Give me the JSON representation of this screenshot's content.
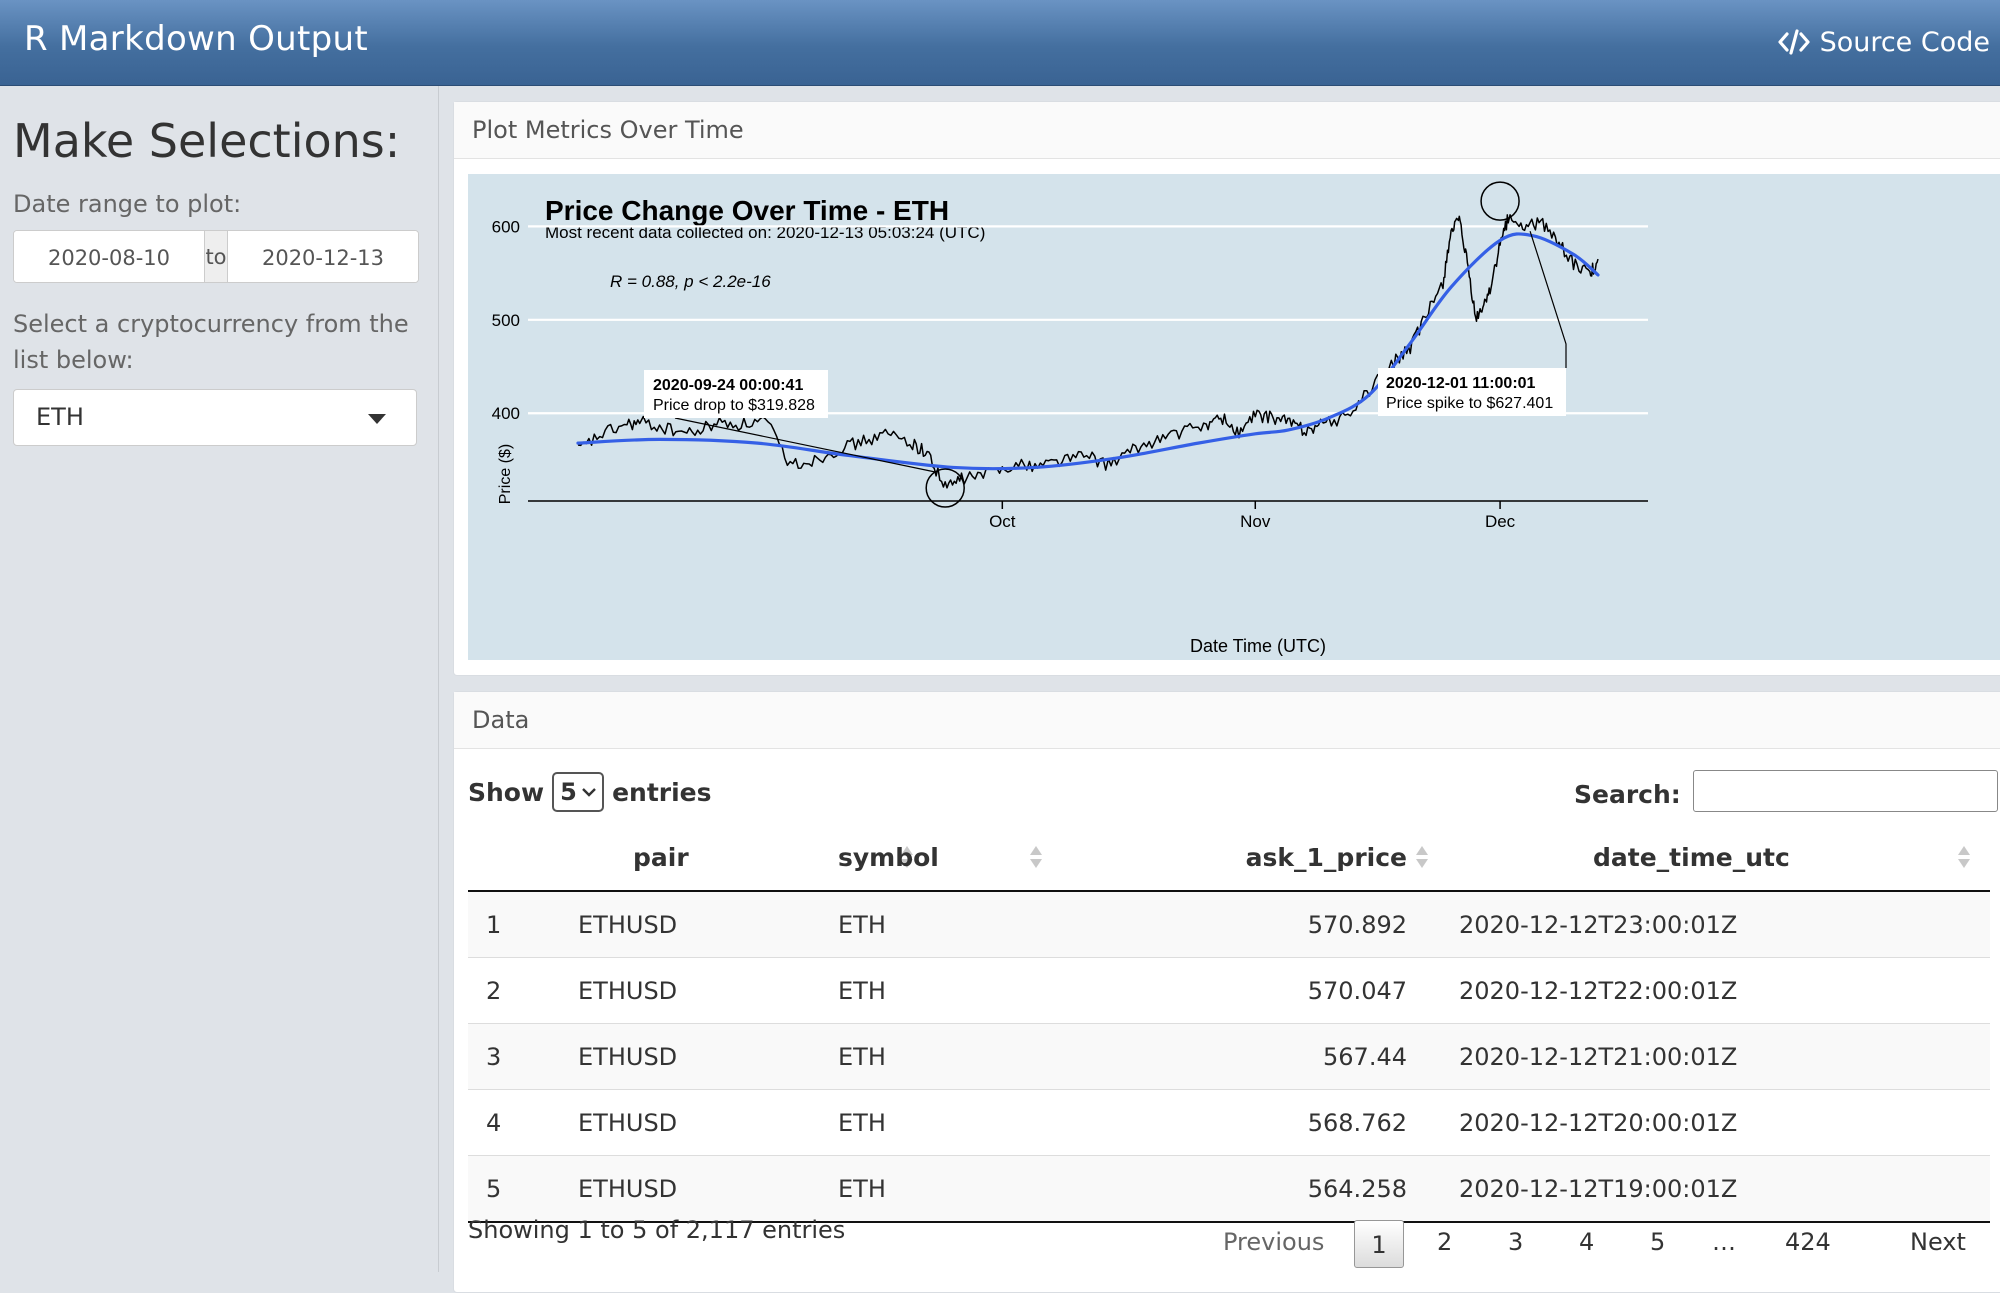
{
  "header": {
    "title": "R Markdown Output",
    "source_code_label": "Source Code"
  },
  "sidebar": {
    "heading": "Make Selections:",
    "date_range_label": "Date range to plot:",
    "date_start": "2020-08-10",
    "date_sep": "to",
    "date_end": "2020-12-13",
    "crypto_label": "Select a cryptocurrency from the list below:",
    "crypto_selected": "ETH"
  },
  "plot_card": {
    "title": "Plot Metrics Over Time"
  },
  "chart_data": {
    "type": "line",
    "title": "Price Change Over Time - ETH",
    "subtitle": "Most recent data collected on: 2020-12-13 05:03:24 (UTC)",
    "xlabel": "Date Time (UTC)",
    "ylabel": "Price ($)",
    "x_ticks": [
      "Oct",
      "Nov",
      "Dec"
    ],
    "y_ticks": [
      400,
      500,
      600
    ],
    "xlim": [
      "2020-08-10",
      "2020-12-13"
    ],
    "ylim": [
      305,
      640
    ],
    "stat_label": "R = 0.88, p < 2.2e-16",
    "grid": true,
    "series": [
      {
        "type": "line",
        "color": "#000000",
        "x": [
          "2020-08-10",
          "2020-08-13",
          "2020-08-16",
          "2020-08-18",
          "2020-08-21",
          "2020-08-24",
          "2020-08-27",
          "2020-08-30",
          "2020-09-02",
          "2020-09-05",
          "2020-09-08",
          "2020-09-11",
          "2020-09-14",
          "2020-09-17",
          "2020-09-20",
          "2020-09-22",
          "2020-09-24",
          "2020-09-26",
          "2020-09-29",
          "2020-10-02",
          "2020-10-05",
          "2020-10-08",
          "2020-10-11",
          "2020-10-14",
          "2020-10-17",
          "2020-10-20",
          "2020-10-23",
          "2020-10-26",
          "2020-10-28",
          "2020-10-30",
          "2020-11-01",
          "2020-11-03",
          "2020-11-05",
          "2020-11-07",
          "2020-11-09",
          "2020-11-12",
          "2020-11-15",
          "2020-11-18",
          "2020-11-20",
          "2020-11-22",
          "2020-11-24",
          "2020-11-25",
          "2020-11-26",
          "2020-11-27",
          "2020-11-28",
          "2020-11-29",
          "2020-11-30",
          "2020-12-01",
          "2020-12-02",
          "2020-12-04",
          "2020-12-06",
          "2020-12-08",
          "2020-12-10",
          "2020-12-12",
          "2020-12-13"
        ],
        "values": [
          360,
          378,
          388,
          390,
          383,
          378,
          390,
          388,
          392,
          345,
          350,
          362,
          370,
          378,
          368,
          355,
          320,
          330,
          335,
          345,
          344,
          350,
          355,
          345,
          360,
          372,
          380,
          388,
          395,
          378,
          398,
          395,
          392,
          382,
          388,
          395,
          425,
          455,
          470,
          505,
          540,
          596,
          605,
          560,
          500,
          515,
          540,
          580,
          610,
          598,
          605,
          585,
          560,
          548,
          565
        ]
      },
      {
        "type": "line",
        "name": "smooth",
        "color": "#3560e6",
        "x": [
          "2020-08-10",
          "2020-08-20",
          "2020-09-01",
          "2020-09-12",
          "2020-09-25",
          "2020-10-05",
          "2020-10-15",
          "2020-10-25",
          "2020-11-01",
          "2020-11-05",
          "2020-11-10",
          "2020-11-15",
          "2020-11-20",
          "2020-11-25",
          "2020-12-01",
          "2020-12-05",
          "2020-12-10",
          "2020-12-13"
        ],
        "values": [
          368,
          372,
          368,
          355,
          342,
          342,
          352,
          368,
          378,
          382,
          395,
          420,
          475,
          535,
          585,
          590,
          570,
          548
        ]
      }
    ],
    "annotations": [
      {
        "title": "2020-09-24 00:00:41",
        "text": "Price drop to $319.828"
      },
      {
        "title": "2020-12-01 11:00:01",
        "text": "Price spike to $627.401"
      }
    ]
  },
  "data_card": {
    "title": "Data",
    "show_label": "Show",
    "entries_value": "5",
    "entries_label": "entries",
    "search_label": "Search:",
    "columns": [
      "pair",
      "symbol",
      "ask_1_price",
      "date_time_utc"
    ],
    "rows": [
      {
        "idx": "1",
        "pair": "ETHUSD",
        "symbol": "ETH",
        "price": "570.892",
        "dt": "2020-12-12T23:00:01Z"
      },
      {
        "idx": "2",
        "pair": "ETHUSD",
        "symbol": "ETH",
        "price": "570.047",
        "dt": "2020-12-12T22:00:01Z"
      },
      {
        "idx": "3",
        "pair": "ETHUSD",
        "symbol": "ETH",
        "price": "567.44",
        "dt": "2020-12-12T21:00:01Z"
      },
      {
        "idx": "4",
        "pair": "ETHUSD",
        "symbol": "ETH",
        "price": "568.762",
        "dt": "2020-12-12T20:00:01Z"
      },
      {
        "idx": "5",
        "pair": "ETHUSD",
        "symbol": "ETH",
        "price": "564.258",
        "dt": "2020-12-12T19:00:01Z"
      }
    ],
    "info": "Showing 1 to 5 of 2,117 entries",
    "pagination": {
      "previous": "Previous",
      "pages": [
        "1",
        "2",
        "3",
        "4",
        "5",
        "…",
        "424"
      ],
      "next": "Next"
    }
  }
}
